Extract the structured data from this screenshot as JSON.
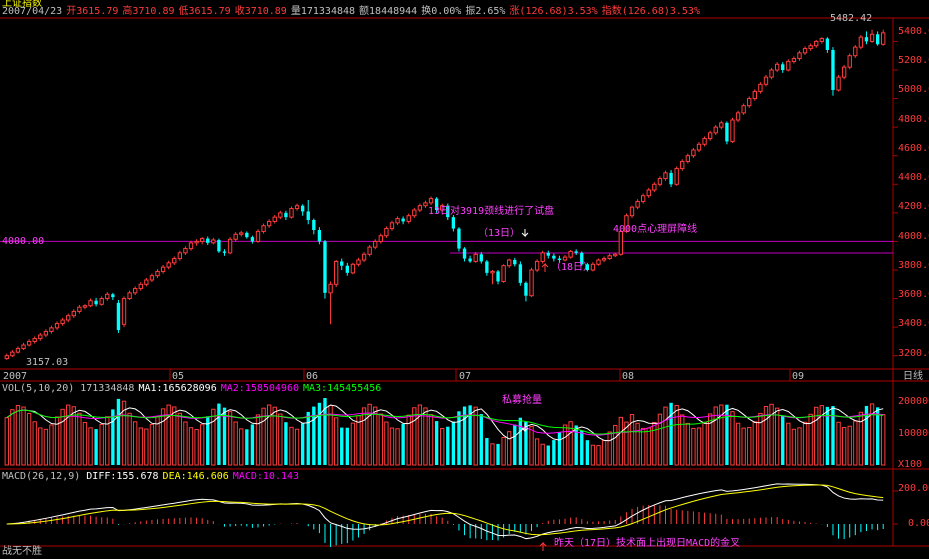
{
  "header": {
    "title": "上证指数",
    "date": "2007/04/23",
    "open_label": "开",
    "open": "3615.79",
    "high_label": "高",
    "high": "3710.89",
    "low_label": "低",
    "low": "3615.79",
    "close_label": "收",
    "close": "3710.89",
    "vol_label": "量",
    "vol": "171334848",
    "amount_label": "额",
    "amount": "18448944",
    "turnover_label": "换",
    "turnover": "0.00%",
    "amplitude_label": "振",
    "amplitude": "2.65%",
    "change_label": "涨",
    "change": "(126.68)3.53%",
    "index_label": "指数",
    "index": "(126.68)3.53%"
  },
  "price_panel": {
    "y_ticks": [
      "5400.00",
      "5200.00",
      "5000.00",
      "4800.00",
      "4600.00",
      "4400.00",
      "4200.00",
      "4000.00",
      "3800.00",
      "3600.00",
      "3400.00",
      "3200.00"
    ],
    "level_label": "4000.00",
    "max_label": "5482.42",
    "min_label": "3157.03",
    "annotations": {
      "test": "13日对3919颈线进行了试盘",
      "day13": "（13日）",
      "day18": "（18日）",
      "psych": "4000点心理屏障线"
    }
  },
  "x_axis": {
    "labels": [
      "2007",
      "05",
      "06",
      "07",
      "08",
      "09"
    ],
    "period": "日线"
  },
  "volume_panel": {
    "title": "VOL(5,10,20)",
    "vol": "171334848",
    "ma1_label": "MA1:",
    "ma1": "165628096",
    "ma2_label": "MA2:",
    "ma2": "158504960",
    "ma3_label": "MA3:",
    "ma3": "145455456",
    "y_ticks": [
      "200000",
      "100000"
    ],
    "unit": "X100",
    "annotation": "私募抢量"
  },
  "macd_panel": {
    "title": "MACD(26,12,9)",
    "diff_label": "DIFF:",
    "diff": "155.678",
    "dea_label": "DEA:",
    "dea": "146.606",
    "macd_label": "MACD:",
    "macd": "10.143",
    "y_ticks": [
      "200.00",
      "0.00"
    ],
    "annotation": "昨天（17日）技术面上出现日MACD的金叉"
  },
  "footer": {
    "text": "战无不胜"
  },
  "colors": {
    "up": "#ff3c3c",
    "down": "#00ffff",
    "axis": "#b00000",
    "ma1": "#ffffff",
    "ma2": "#ff00ff",
    "ma3": "#00ff00",
    "macd_diff": "#ffffff",
    "macd_dea": "#ffff00",
    "annotation": "#ff40ff"
  },
  "chart_data": {
    "type": "candlestick",
    "ylim": [
      3100,
      5550
    ],
    "reference_lines": [
      4000,
      3919
    ],
    "candles": [
      [
        3180,
        3200,
        3170,
        3215
      ],
      [
        3200,
        3225,
        3190,
        3240
      ],
      [
        3225,
        3250,
        3215,
        3265
      ],
      [
        3250,
        3275,
        3240,
        3290
      ],
      [
        3275,
        3300,
        3265,
        3315
      ],
      [
        3300,
        3320,
        3285,
        3335
      ],
      [
        3320,
        3345,
        3305,
        3360
      ],
      [
        3345,
        3370,
        3330,
        3385
      ],
      [
        3370,
        3395,
        3355,
        3410
      ],
      [
        3395,
        3425,
        3380,
        3440
      ],
      [
        3425,
        3450,
        3410,
        3465
      ],
      [
        3450,
        3480,
        3435,
        3495
      ],
      [
        3480,
        3510,
        3465,
        3525
      ],
      [
        3510,
        3540,
        3495,
        3555
      ],
      [
        3540,
        3550,
        3525,
        3560
      ],
      [
        3550,
        3585,
        3540,
        3600
      ],
      [
        3585,
        3560,
        3545,
        3605
      ],
      [
        3560,
        3600,
        3550,
        3615
      ],
      [
        3600,
        3630,
        3585,
        3645
      ],
      [
        3630,
        3610,
        3590,
        3640
      ],
      [
        3570,
        3380,
        3360,
        3590
      ],
      [
        3420,
        3600,
        3400,
        3615
      ],
      [
        3600,
        3640,
        3590,
        3655
      ],
      [
        3640,
        3670,
        3625,
        3685
      ],
      [
        3670,
        3700,
        3655,
        3715
      ],
      [
        3700,
        3730,
        3685,
        3745
      ],
      [
        3730,
        3760,
        3715,
        3775
      ],
      [
        3760,
        3790,
        3745,
        3805
      ],
      [
        3790,
        3820,
        3775,
        3835
      ],
      [
        3820,
        3850,
        3805,
        3865
      ],
      [
        3850,
        3880,
        3835,
        3895
      ],
      [
        3880,
        3920,
        3865,
        3935
      ],
      [
        3920,
        3950,
        3905,
        3965
      ],
      [
        3950,
        3990,
        3935,
        4005
      ],
      [
        3990,
        4000,
        3970,
        4015
      ],
      [
        4000,
        4020,
        3980,
        4030
      ],
      [
        4020,
        3990,
        3975,
        4035
      ],
      [
        3990,
        4010,
        3980,
        4025
      ],
      [
        4010,
        3930,
        3920,
        4020
      ],
      [
        3930,
        3920,
        3900,
        3945
      ],
      [
        3920,
        4015,
        3910,
        4030
      ],
      [
        4015,
        4050,
        4000,
        4065
      ],
      [
        4050,
        4060,
        4035,
        4075
      ],
      [
        4060,
        4030,
        4020,
        4070
      ],
      [
        4030,
        4000,
        3985,
        4040
      ],
      [
        4000,
        4070,
        3990,
        4085
      ],
      [
        4070,
        4110,
        4055,
        4125
      ],
      [
        4110,
        4140,
        4095,
        4155
      ],
      [
        4140,
        4170,
        4125,
        4185
      ],
      [
        4170,
        4200,
        4155,
        4215
      ],
      [
        4200,
        4170,
        4150,
        4215
      ],
      [
        4170,
        4230,
        4160,
        4245
      ],
      [
        4230,
        4250,
        4215,
        4265
      ],
      [
        4250,
        4210,
        4180,
        4260
      ],
      [
        4210,
        4150,
        4120,
        4290
      ],
      [
        4150,
        4080,
        4050,
        4160
      ],
      [
        4080,
        4000,
        3980,
        4100
      ],
      [
        4000,
        3640,
        3600,
        4010
      ],
      [
        3640,
        3700,
        3420,
        3720
      ],
      [
        3700,
        3860,
        3680,
        3870
      ],
      [
        3860,
        3830,
        3800,
        3880
      ],
      [
        3830,
        3780,
        3760,
        3850
      ],
      [
        3780,
        3840,
        3770,
        3850
      ],
      [
        3840,
        3870,
        3825,
        3885
      ],
      [
        3870,
        3910,
        3855,
        3925
      ],
      [
        3910,
        3960,
        3895,
        3975
      ],
      [
        3960,
        4000,
        3945,
        4015
      ],
      [
        4000,
        4040,
        3985,
        4055
      ],
      [
        4040,
        4090,
        4025,
        4105
      ],
      [
        4090,
        4130,
        4075,
        4145
      ],
      [
        4130,
        4160,
        4115,
        4175
      ],
      [
        4160,
        4140,
        4120,
        4175
      ],
      [
        4140,
        4180,
        4125,
        4195
      ],
      [
        4180,
        4220,
        4165,
        4235
      ],
      [
        4220,
        4250,
        4205,
        4265
      ],
      [
        4250,
        4270,
        4235,
        4285
      ],
      [
        4270,
        4300,
        4255,
        4315
      ],
      [
        4300,
        4220,
        4200,
        4310
      ],
      [
        4220,
        4250,
        4205,
        4265
      ],
      [
        4250,
        4170,
        4150,
        4265
      ],
      [
        4170,
        4090,
        4070,
        4185
      ],
      [
        4090,
        3950,
        3930,
        4100
      ],
      [
        3950,
        3880,
        3860,
        3960
      ],
      [
        3880,
        3860,
        3850,
        3900
      ],
      [
        3860,
        3910,
        3850,
        3925
      ],
      [
        3910,
        3860,
        3845,
        3925
      ],
      [
        3860,
        3780,
        3760,
        3870
      ],
      [
        3780,
        3790,
        3700,
        3800
      ],
      [
        3790,
        3720,
        3700,
        3800
      ],
      [
        3720,
        3830,
        3710,
        3840
      ],
      [
        3830,
        3870,
        3815,
        3880
      ],
      [
        3870,
        3840,
        3825,
        3885
      ],
      [
        3840,
        3710,
        3690,
        3860
      ],
      [
        3710,
        3620,
        3580,
        3720
      ],
      [
        3620,
        3800,
        3610,
        3815
      ],
      [
        3800,
        3860,
        3785,
        3875
      ],
      [
        3860,
        3920,
        3845,
        3935
      ],
      [
        3920,
        3900,
        3880,
        3935
      ],
      [
        3900,
        3880,
        3860,
        3915
      ],
      [
        3880,
        3870,
        3850,
        3900
      ],
      [
        3870,
        3890,
        3860,
        3905
      ],
      [
        3890,
        3930,
        3880,
        3940
      ],
      [
        3930,
        3920,
        3905,
        3945
      ],
      [
        3920,
        3840,
        3830,
        3930
      ],
      [
        3840,
        3800,
        3790,
        3850
      ],
      [
        3800,
        3840,
        3790,
        3855
      ],
      [
        3840,
        3870,
        3830,
        3880
      ],
      [
        3870,
        3880,
        3855,
        3895
      ],
      [
        3880,
        3900,
        3870,
        3915
      ],
      [
        3900,
        3910,
        3890,
        3920
      ],
      [
        3910,
        4070,
        3900,
        4080
      ],
      [
        4070,
        4180,
        4060,
        4195
      ],
      [
        4180,
        4240,
        4165,
        4250
      ],
      [
        4240,
        4280,
        4225,
        4295
      ],
      [
        4280,
        4320,
        4265,
        4335
      ],
      [
        4320,
        4360,
        4305,
        4375
      ],
      [
        4360,
        4400,
        4345,
        4415
      ],
      [
        4400,
        4440,
        4385,
        4455
      ],
      [
        4440,
        4480,
        4425,
        4495
      ],
      [
        4480,
        4400,
        4380,
        4500
      ],
      [
        4400,
        4510,
        4390,
        4525
      ],
      [
        4510,
        4560,
        4495,
        4575
      ],
      [
        4560,
        4600,
        4545,
        4615
      ],
      [
        4600,
        4640,
        4585,
        4655
      ],
      [
        4640,
        4680,
        4625,
        4695
      ],
      [
        4680,
        4720,
        4665,
        4735
      ],
      [
        4720,
        4760,
        4705,
        4775
      ],
      [
        4760,
        4800,
        4745,
        4815
      ],
      [
        4800,
        4830,
        4785,
        4845
      ],
      [
        4830,
        4700,
        4680,
        4840
      ],
      [
        4700,
        4850,
        4690,
        4865
      ],
      [
        4850,
        4900,
        4835,
        4915
      ],
      [
        4900,
        4950,
        4885,
        4965
      ],
      [
        4950,
        5000,
        4935,
        5015
      ],
      [
        5000,
        5050,
        4985,
        5065
      ],
      [
        5050,
        5100,
        5035,
        5115
      ],
      [
        5100,
        5150,
        5085,
        5165
      ],
      [
        5150,
        5200,
        5135,
        5215
      ],
      [
        5200,
        5240,
        5185,
        5255
      ],
      [
        5240,
        5200,
        5180,
        5255
      ],
      [
        5200,
        5260,
        5190,
        5275
      ],
      [
        5260,
        5280,
        5245,
        5295
      ],
      [
        5280,
        5320,
        5265,
        5335
      ],
      [
        5320,
        5350,
        5305,
        5365
      ],
      [
        5350,
        5370,
        5335,
        5385
      ],
      [
        5370,
        5400,
        5355,
        5410
      ],
      [
        5400,
        5420,
        5385,
        5430
      ],
      [
        5420,
        5340,
        5320,
        5430
      ],
      [
        5340,
        5060,
        5020,
        5360
      ],
      [
        5060,
        5150,
        5050,
        5165
      ],
      [
        5150,
        5220,
        5135,
        5235
      ],
      [
        5220,
        5300,
        5205,
        5315
      ],
      [
        5300,
        5360,
        5285,
        5375
      ],
      [
        5360,
        5430,
        5345,
        5445
      ],
      [
        5430,
        5400,
        5380,
        5470
      ],
      [
        5400,
        5450,
        5390,
        5482
      ],
      [
        5450,
        5380,
        5370,
        5470
      ],
      [
        5380,
        5460,
        5370,
        5482
      ]
    ]
  }
}
